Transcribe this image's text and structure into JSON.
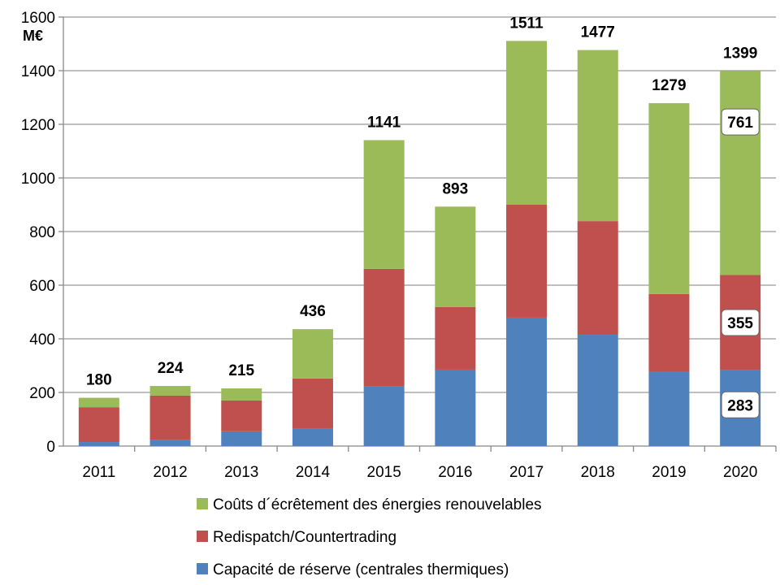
{
  "chart_data": {
    "type": "bar",
    "stacked": true,
    "ylabel": "M€",
    "ylim": [
      0,
      1600
    ],
    "yticks": [
      0,
      200,
      400,
      600,
      800,
      1000,
      1200,
      1400,
      1600
    ],
    "grid": true,
    "legend_placement": "bottom",
    "categories": [
      "2011",
      "2012",
      "2013",
      "2014",
      "2015",
      "2016",
      "2017",
      "2018",
      "2019",
      "2020"
    ],
    "series": [
      {
        "name": "Capacité de réserve (centrales thermiques)",
        "color": "#4F81BD",
        "values": [
          15,
          24,
          55,
          64,
          224,
          285,
          479,
          415,
          276,
          283
        ]
      },
      {
        "name": "Redispatch/Countertrading",
        "color": "#C0504D",
        "values": [
          130,
          164,
          115,
          188,
          437,
          234,
          421,
          424,
          291,
          355
        ]
      },
      {
        "name": "Coûts d´écrêtement des énergies renouvelables",
        "color": "#9BBB59",
        "values": [
          35,
          36,
          45,
          184,
          480,
          374,
          611,
          638,
          712,
          761
        ]
      }
    ],
    "totals": [
      "180",
      "224",
      "215",
      "436",
      "1141",
      "893",
      "1511",
      "1477",
      "1279",
      "1399"
    ],
    "boxed_labels_2020": [
      "283",
      "355",
      "761"
    ]
  }
}
